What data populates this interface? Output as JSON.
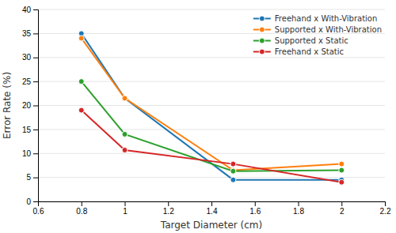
{
  "chart_data": {
    "type": "line",
    "xlabel": "Target Diameter (cm)",
    "ylabel": "Error Rate (%)",
    "x": [
      0.8,
      1.0,
      1.5,
      2.0
    ],
    "series": [
      {
        "name": "Freehand x With-Vibration",
        "values": [
          35.0,
          21.5,
          4.5,
          4.5
        ]
      },
      {
        "name": "Supported x With-Vibration",
        "values": [
          34.0,
          21.5,
          6.5,
          7.8
        ]
      },
      {
        "name": "Supported x Static",
        "values": [
          25.0,
          14.0,
          6.3,
          6.5
        ]
      },
      {
        "name": "Freehand x Static",
        "values": [
          19.0,
          10.7,
          7.8,
          4.0
        ]
      }
    ],
    "xlim": [
      0.6,
      2.2
    ],
    "ylim": [
      0,
      40
    ],
    "xticks": [
      0.6,
      0.8,
      1,
      1.2,
      1.4,
      1.6,
      1.8,
      2,
      2.2
    ],
    "yticks": [
      0,
      5,
      10,
      15,
      20,
      25,
      30,
      35,
      40
    ],
    "marker": "circle",
    "grid": true,
    "legend": "upper right"
  }
}
